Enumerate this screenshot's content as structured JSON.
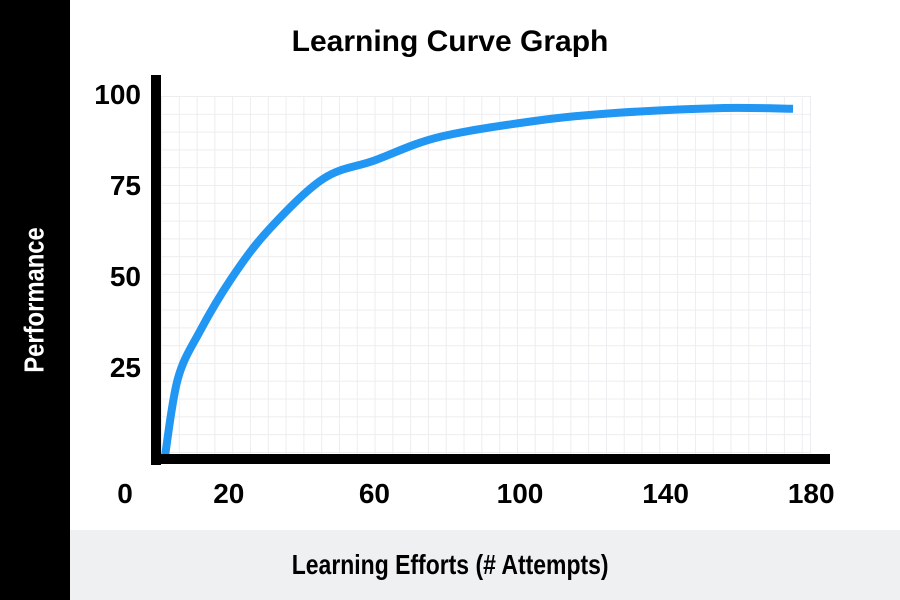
{
  "title": "Learning Curve Graph",
  "axes": {
    "y_label": "Performance",
    "x_label": "Learning Efforts (# Attempts)"
  },
  "chart_data": {
    "type": "line",
    "title": "Learning Curve Graph",
    "xlabel": "Learning Efforts (# Attempts)",
    "ylabel": "Performance",
    "x_ticks": [
      0,
      20,
      60,
      100,
      140,
      180
    ],
    "y_ticks": [
      25,
      50,
      75,
      100
    ],
    "xlim": [
      0,
      180
    ],
    "ylim": [
      0,
      100
    ],
    "grid": true,
    "legend_position": "none",
    "series": [
      {
        "name": "performance-curve",
        "color": "#2196f3",
        "stroke_width": 8,
        "points": [
          [
            2.5,
            1
          ],
          [
            6,
            22
          ],
          [
            12,
            35
          ],
          [
            21,
            50
          ],
          [
            31,
            63
          ],
          [
            46,
            77
          ],
          [
            60,
            82
          ],
          [
            78,
            88.5
          ],
          [
            105,
            93
          ],
          [
            127,
            95.1
          ],
          [
            155,
            96.4
          ],
          [
            175,
            96.2
          ]
        ]
      }
    ]
  },
  "colors": {
    "curve": "#2196f3",
    "axis": "#000000",
    "grid_line": "#ededf0",
    "sidebar_bg": "#000000",
    "footer_bg": "#eef0f1",
    "title_text": "#000000",
    "y_label_text": "#ffffff"
  }
}
